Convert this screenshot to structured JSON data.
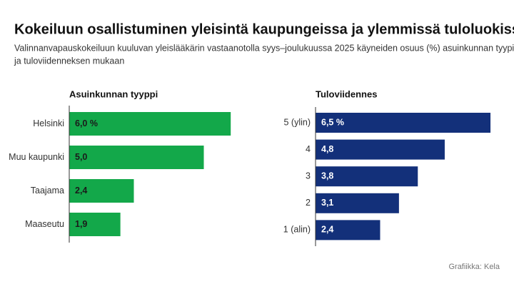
{
  "title": "Kokeiluun osallistuminen yleisintä kaupungeissa ja ylemmissä tuloluokissa",
  "subtitle": [
    "Valinnanvapauskokeiluun kuuluvan yleislääkärin vastaanotolla syys–joulukuussa 2025 käyneiden osuus (%) asuinkunnan tyypin",
    "ja tuloviidenneksen mukaan"
  ],
  "source": "Grafiikka: Kela",
  "chart_data": [
    {
      "type": "bar",
      "orientation": "horizontal",
      "title": "Asuinkunnan tyyppi",
      "categories": [
        "Helsinki",
        "Muu kaupunki",
        "Taajama",
        "Maaseutu"
      ],
      "values": [
        6.0,
        5.0,
        2.4,
        1.9
      ],
      "value_labels": [
        "6,0 %",
        "5,0",
        "2,4",
        "1,9"
      ],
      "color": "#13a84a",
      "label_color": "#1a1a1a"
    },
    {
      "type": "bar",
      "orientation": "horizontal",
      "title": "Tuloviidennes",
      "categories": [
        "5 (ylin)",
        "4",
        "3",
        "2",
        "1 (alin)"
      ],
      "values": [
        6.5,
        4.8,
        3.8,
        3.1,
        2.4
      ],
      "value_labels": [
        "6,5 %",
        "4,8",
        "3,8",
        "3,1",
        "2,4"
      ],
      "color": "#13307a",
      "label_color": "#ffffff"
    }
  ]
}
